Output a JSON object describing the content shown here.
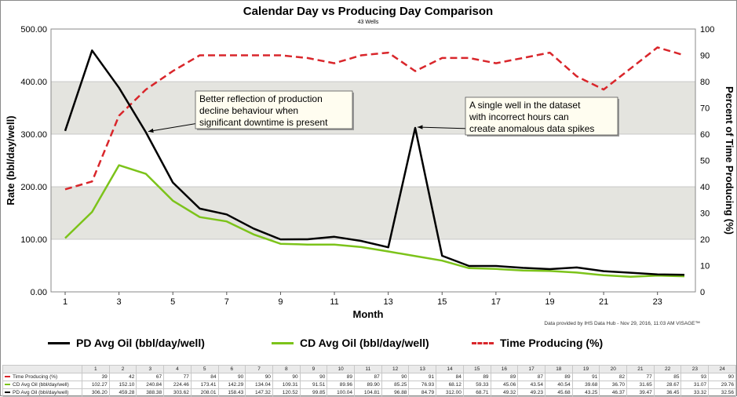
{
  "chart_data": {
    "type": "line",
    "title": "Calendar Day vs Producing Day Comparison",
    "subtitle": "43 Wells",
    "xlabel": "Month",
    "ylabel": "Rate (bbl/day/well)",
    "y2label": "Percent of Time Producing (%)",
    "xlim": [
      1,
      24
    ],
    "ylim": [
      0,
      500
    ],
    "y2lim": [
      0,
      100
    ],
    "x_ticks": [
      "1",
      "3",
      "5",
      "7",
      "9",
      "11",
      "13",
      "15",
      "17",
      "19",
      "21",
      "23"
    ],
    "y_ticks": [
      "0.00",
      "100.00",
      "200.00",
      "300.00",
      "400.00",
      "500.00"
    ],
    "y2_ticks": [
      "0",
      "10",
      "20",
      "30",
      "40",
      "50",
      "60",
      "70",
      "80",
      "90",
      "100"
    ],
    "legend_position": "bottom",
    "x": [
      1,
      2,
      3,
      4,
      5,
      6,
      7,
      8,
      9,
      10,
      11,
      12,
      13,
      14,
      15,
      16,
      17,
      18,
      19,
      20,
      21,
      22,
      23,
      24
    ],
    "series": [
      {
        "name": "PD Avg Oil (bbl/day/well)",
        "axis": "left",
        "color": "#000000",
        "style": "solid",
        "values": [
          306.2,
          459.28,
          388.38,
          303.62,
          208.01,
          158.43,
          147.32,
          120.52,
          99.85,
          100.04,
          104.81,
          96.88,
          84.79,
          312.0,
          68.71,
          49.32,
          49.23,
          45.68,
          43.25,
          46.37,
          39.47,
          36.45,
          33.32,
          32.56
        ]
      },
      {
        "name": "CD Avg Oil (bbl/day/well)",
        "axis": "left",
        "color": "#7cc31a",
        "style": "solid",
        "values": [
          102.27,
          152.1,
          240.84,
          224.46,
          173.41,
          142.29,
          134.04,
          109.31,
          91.51,
          89.96,
          89.9,
          85.25,
          76.93,
          68.12,
          59.33,
          45.06,
          43.54,
          40.54,
          39.68,
          36.7,
          31.65,
          28.67,
          31.07,
          29.76
        ]
      },
      {
        "name": "Time Producing (%)",
        "axis": "right",
        "color": "#d9262b",
        "style": "dashed",
        "values": [
          39,
          42,
          67,
          77,
          84,
          90,
          90,
          90,
          90,
          89,
          87,
          90,
          91,
          84,
          89,
          89,
          87,
          89,
          91,
          82,
          77,
          85,
          93,
          90
        ]
      }
    ],
    "annotations": [
      {
        "text": [
          "Better reflection of production",
          "decline behaviour when",
          "significant downtime is present"
        ],
        "arrow_to": {
          "x": 4,
          "y": 303.62
        }
      },
      {
        "text": [
          "A single well in the dataset",
          "with incorrect hours can",
          "create anomalous data spikes"
        ],
        "arrow_to": {
          "x": 14,
          "y": 312.0
        }
      }
    ],
    "credit": "Data provided by IHS Data Hub - Nov 29, 2016, 11:03 AM VISAGE™"
  },
  "table": {
    "headers": [
      "1",
      "2",
      "3",
      "4",
      "5",
      "6",
      "7",
      "8",
      "9",
      "10",
      "11",
      "12",
      "13",
      "14",
      "15",
      "16",
      "17",
      "18",
      "19",
      "20",
      "21",
      "22",
      "23",
      "24"
    ],
    "rows": [
      {
        "label": "Time Producing (%)",
        "color": "#d9262b",
        "values": [
          "39",
          "42",
          "67",
          "77",
          "84",
          "90",
          "90",
          "90",
          "90",
          "89",
          "87",
          "90",
          "91",
          "84",
          "89",
          "89",
          "87",
          "89",
          "91",
          "82",
          "77",
          "85",
          "93",
          "90"
        ]
      },
      {
        "label": "CD Avg Oil (bbl/day/well)",
        "color": "#7cc31a",
        "values": [
          "102.27",
          "152.10",
          "240.84",
          "224.46",
          "173.41",
          "142.29",
          "134.04",
          "109.31",
          "91.51",
          "89.96",
          "89.90",
          "85.25",
          "76.93",
          "68.12",
          "59.33",
          "45.06",
          "43.54",
          "40.54",
          "39.68",
          "36.70",
          "31.65",
          "28.67",
          "31.07",
          "29.76"
        ]
      },
      {
        "label": "PD Avg Oil (bbl/day/well)",
        "color": "#000000",
        "values": [
          "306.20",
          "459.28",
          "388.38",
          "303.62",
          "208.01",
          "158.43",
          "147.32",
          "120.52",
          "99.85",
          "100.04",
          "104.81",
          "96.88",
          "84.79",
          "312.00",
          "68.71",
          "49.32",
          "49.23",
          "45.68",
          "43.25",
          "46.37",
          "39.47",
          "36.45",
          "33.32",
          "32.56"
        ]
      }
    ]
  }
}
